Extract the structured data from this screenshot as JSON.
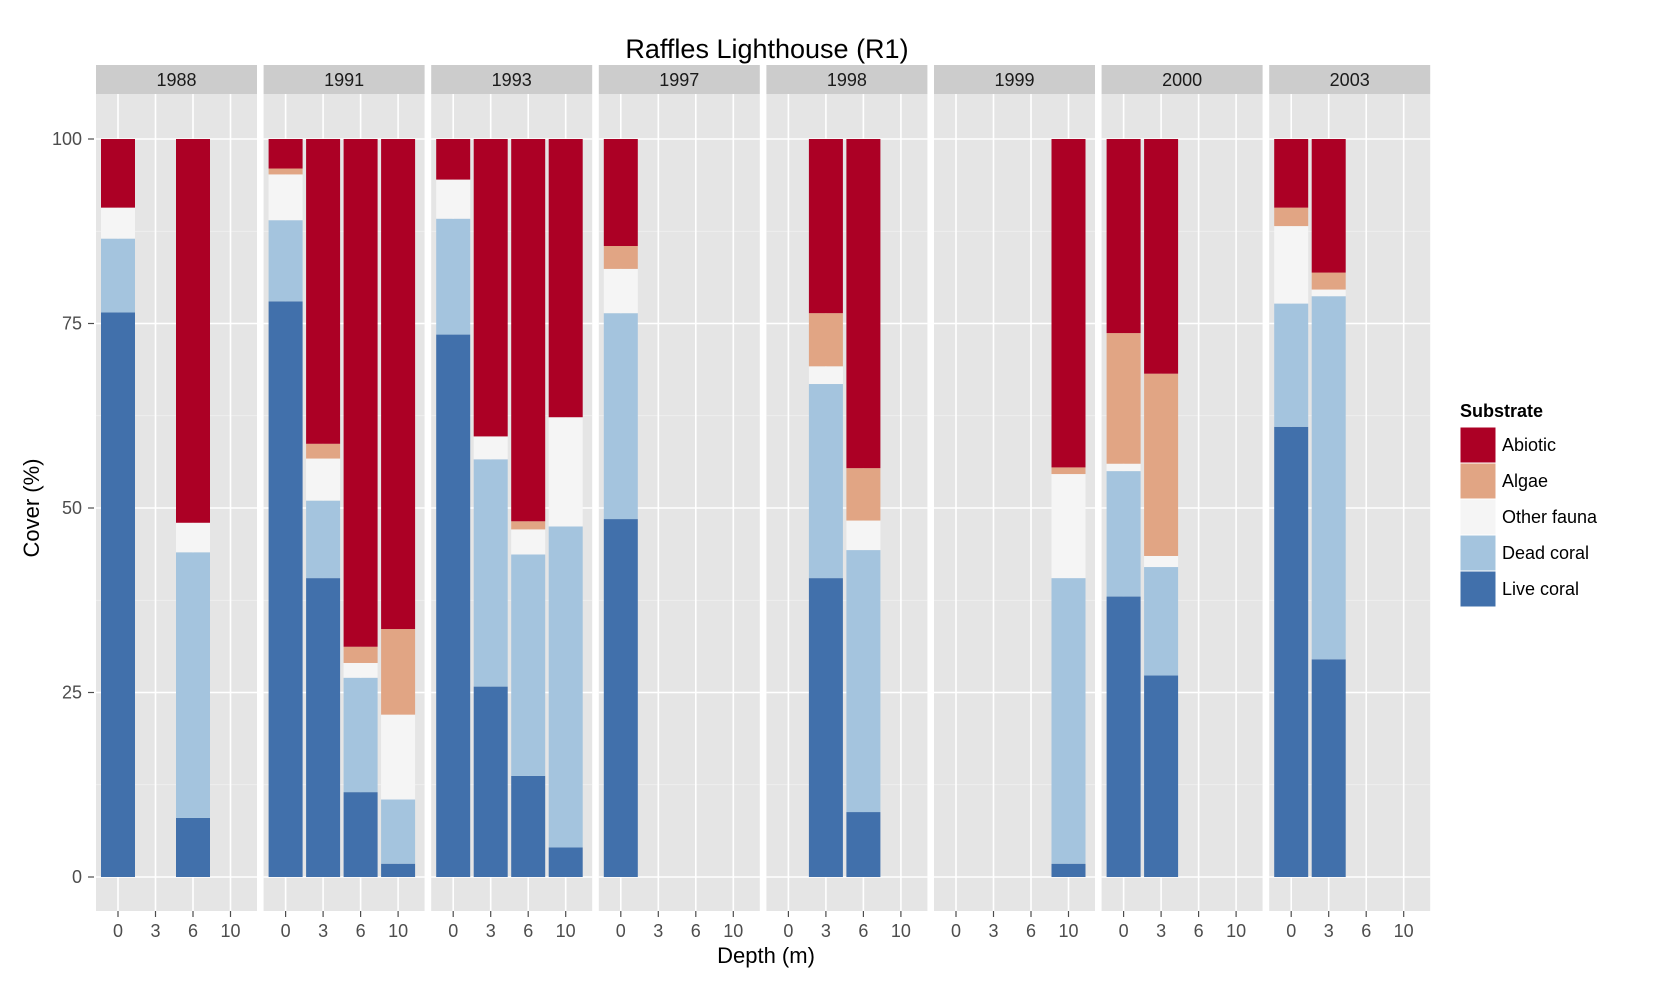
{
  "chart_data": {
    "type": "bar",
    "stacked": true,
    "faceted": true,
    "title": "Raffles Lighthouse (R1)",
    "xlabel": "Depth (m)",
    "ylabel": "Cover (%)",
    "ylim": [
      0,
      105
    ],
    "yticks": [
      0,
      25,
      50,
      75,
      100
    ],
    "categories": [
      "0",
      "3",
      "6",
      "10"
    ],
    "legend": {
      "title": "Substrate",
      "position": "right",
      "entries": [
        "Abiotic",
        "Algae",
        "Other fauna",
        "Dead coral",
        "Live coral"
      ]
    },
    "stack_order_bottom_to_top": [
      "Live coral",
      "Dead coral",
      "Other fauna",
      "Algae",
      "Abiotic"
    ],
    "colors": {
      "Abiotic": "#ac0025",
      "Algae": "#e1a584",
      "Other fauna": "#f5f5f5",
      "Dead coral": "#a4c4de",
      "Live coral": "#4170ab"
    },
    "grid": true,
    "panel_background": "#e5e5e5",
    "strip_background": "#cccccc",
    "facets": [
      {
        "label": "1988",
        "bars": [
          {
            "depth": "0",
            "values": {
              "Live coral": 76.5,
              "Dead coral": 10,
              "Other fauna": 4.2,
              "Algae": 0,
              "Abiotic": 9.3
            }
          },
          {
            "depth": "6",
            "values": {
              "Live coral": 8,
              "Dead coral": 36,
              "Other fauna": 4,
              "Algae": 0,
              "Abiotic": 52
            }
          }
        ]
      },
      {
        "label": "1991",
        "bars": [
          {
            "depth": "0",
            "values": {
              "Live coral": 78,
              "Dead coral": 11,
              "Other fauna": 6.2,
              "Algae": 0.8,
              "Abiotic": 4
            }
          },
          {
            "depth": "3",
            "values": {
              "Live coral": 40.5,
              "Dead coral": 10.5,
              "Other fauna": 5.7,
              "Algae": 2,
              "Abiotic": 41.3
            }
          },
          {
            "depth": "6",
            "values": {
              "Live coral": 11.5,
              "Dead coral": 15.5,
              "Other fauna": 2,
              "Algae": 2.2,
              "Abiotic": 68.8
            }
          },
          {
            "depth": "10",
            "values": {
              "Live coral": 1.8,
              "Dead coral": 8.7,
              "Other fauna": 11.5,
              "Algae": 11.6,
              "Abiotic": 66.4
            }
          }
        ]
      },
      {
        "label": "1993",
        "bars": [
          {
            "depth": "0",
            "values": {
              "Live coral": 73.5,
              "Dead coral": 15.7,
              "Other fauna": 5.3,
              "Algae": 0,
              "Abiotic": 5.5
            }
          },
          {
            "depth": "3",
            "values": {
              "Live coral": 25.8,
              "Dead coral": 30.8,
              "Other fauna": 3.1,
              "Algae": 0,
              "Abiotic": 40.3
            }
          },
          {
            "depth": "6",
            "values": {
              "Live coral": 13.7,
              "Dead coral": 30,
              "Other fauna": 3.4,
              "Algae": 1.1,
              "Abiotic": 51.8
            }
          },
          {
            "depth": "10",
            "values": {
              "Live coral": 4,
              "Dead coral": 43.5,
              "Other fauna": 14.8,
              "Algae": 0,
              "Abiotic": 37.7
            }
          }
        ]
      },
      {
        "label": "1997",
        "bars": [
          {
            "depth": "0",
            "values": {
              "Live coral": 48.5,
              "Dead coral": 27.9,
              "Other fauna": 6,
              "Algae": 3.1,
              "Abiotic": 14.5
            }
          }
        ]
      },
      {
        "label": "1998",
        "bars": [
          {
            "depth": "3",
            "values": {
              "Live coral": 40.5,
              "Dead coral": 26.3,
              "Other fauna": 2.4,
              "Algae": 7.2,
              "Abiotic": 23.6
            }
          },
          {
            "depth": "6",
            "values": {
              "Live coral": 8.8,
              "Dead coral": 35.5,
              "Other fauna": 4,
              "Algae": 7.1,
              "Abiotic": 44.6
            }
          }
        ]
      },
      {
        "label": "1999",
        "bars": [
          {
            "depth": "10",
            "values": {
              "Live coral": 1.8,
              "Dead coral": 38.7,
              "Other fauna": 14.1,
              "Algae": 0.9,
              "Abiotic": 44.5
            }
          }
        ]
      },
      {
        "label": "2000",
        "bars": [
          {
            "depth": "0",
            "values": {
              "Live coral": 38,
              "Dead coral": 17,
              "Other fauna": 1,
              "Algae": 17.7,
              "Abiotic": 26.3
            }
          },
          {
            "depth": "3",
            "values": {
              "Live coral": 27.3,
              "Dead coral": 14.7,
              "Other fauna": 1.5,
              "Algae": 24.7,
              "Abiotic": 31.8
            }
          }
        ]
      },
      {
        "label": "2003",
        "bars": [
          {
            "depth": "0",
            "values": {
              "Live coral": 61,
              "Dead coral": 16.7,
              "Other fauna": 10.5,
              "Algae": 2.5,
              "Abiotic": 9.3
            }
          },
          {
            "depth": "3",
            "values": {
              "Live coral": 29.5,
              "Dead coral": 49.2,
              "Other fauna": 0.9,
              "Algae": 2.3,
              "Abiotic": 18.1
            }
          }
        ]
      }
    ]
  }
}
